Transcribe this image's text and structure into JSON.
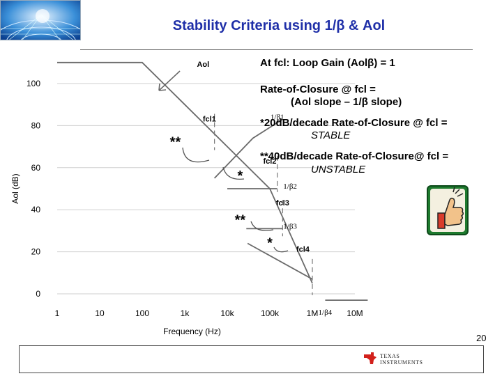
{
  "slide": {
    "title": "Stability Criteria using 1/β & Aol",
    "page_number": "20"
  },
  "bullets": {
    "b1": "At fcl: Loop Gain (Aolβ) = 1",
    "b2_line1": "Rate-of-Closure @ fcl =",
    "b2_line2": "(Aol slope – 1/β slope)",
    "b3_line1": "*20dB/decade Rate-of-Closure @ fcl =",
    "b3_line2": "STABLE",
    "b4_line1": "**40dB/decade Rate-of-Closure@ fcl =",
    "b4_line2": "UNSTABLE"
  },
  "footer": {
    "logo_line1": "TEXAS",
    "logo_line2": "INSTRUMENTS"
  },
  "chart_data": {
    "type": "line",
    "xlabel": "Frequency (Hz)",
    "ylabel": "Aol (dB)",
    "x_scale": "log",
    "xlim": [
      1,
      10000000
    ],
    "ylim": [
      0,
      100
    ],
    "x_ticks": [
      {
        "value": 1,
        "label": "1"
      },
      {
        "value": 10,
        "label": "10"
      },
      {
        "value": 100,
        "label": "100"
      },
      {
        "value": 1000,
        "label": "1k"
      },
      {
        "value": 10000,
        "label": "10k"
      },
      {
        "value": 100000,
        "label": "100k"
      },
      {
        "value": 1000000,
        "label": "1M"
      },
      {
        "value": 10000000,
        "label": "10M"
      }
    ],
    "y_ticks": [
      {
        "value": 0,
        "label": "0"
      },
      {
        "value": 20,
        "label": "20"
      },
      {
        "value": 40,
        "label": "40"
      },
      {
        "value": 60,
        "label": "60"
      },
      {
        "value": 80,
        "label": "80"
      },
      {
        "value": 100,
        "label": "100"
      }
    ],
    "grid": "horizontal",
    "series": [
      {
        "name": "Aol",
        "points": [
          [
            1,
            110
          ],
          [
            100,
            110
          ],
          [
            100000,
            50
          ],
          [
            1000000,
            5
          ]
        ]
      },
      {
        "name": "1/β1",
        "points": [
          [
            5000,
            55
          ],
          [
            40000,
            74
          ],
          [
            200000,
            83
          ]
        ]
      },
      {
        "name": "1/β2",
        "points": [
          [
            10000,
            50
          ],
          [
            150000,
            50
          ]
        ]
      },
      {
        "name": "1/β3",
        "points": [
          [
            28000,
            31
          ],
          [
            200000,
            31
          ]
        ]
      },
      {
        "name": "1/β4",
        "points": [
          [
            2000000,
            -3
          ],
          [
            20000000,
            -3
          ]
        ]
      },
      {
        "name": "",
        "points": [
          [
            30000,
            24
          ],
          [
            1000000,
            7
          ]
        ]
      }
    ],
    "annotations": [
      {
        "text": "Aol",
        "x": 2700,
        "y": 108
      },
      {
        "text": "1/β1",
        "x": 150000,
        "y": 83
      },
      {
        "text": "fcl1",
        "x": 3800,
        "y": 82
      },
      {
        "text": "fcl2",
        "x": 100000,
        "y": 62
      },
      {
        "text": "1/β2",
        "x": 300000,
        "y": 50
      },
      {
        "text": "fcl3",
        "x": 200000,
        "y": 42
      },
      {
        "text": "1/β3",
        "x": 300000,
        "y": 31
      },
      {
        "text": "fcl4",
        "x": 600000,
        "y": 20
      },
      {
        "text": "1/β4",
        "x": 2000000,
        "y": -10
      },
      {
        "text": "**",
        "x": 600,
        "y": 70
      },
      {
        "text": "*",
        "x": 20000,
        "y": 54
      },
      {
        "text": "**",
        "x": 20000,
        "y": 33
      },
      {
        "text": "*",
        "x": 100000,
        "y": 22
      }
    ],
    "crossings": [
      {
        "name": "fcl1",
        "x": 5000,
        "y": 77
      },
      {
        "name": "fcl2",
        "x": 150000,
        "y": 57
      },
      {
        "name": "fcl3",
        "x": 200000,
        "y": 36
      },
      {
        "name": "fcl4",
        "x": 1000000,
        "y": 8
      }
    ]
  }
}
